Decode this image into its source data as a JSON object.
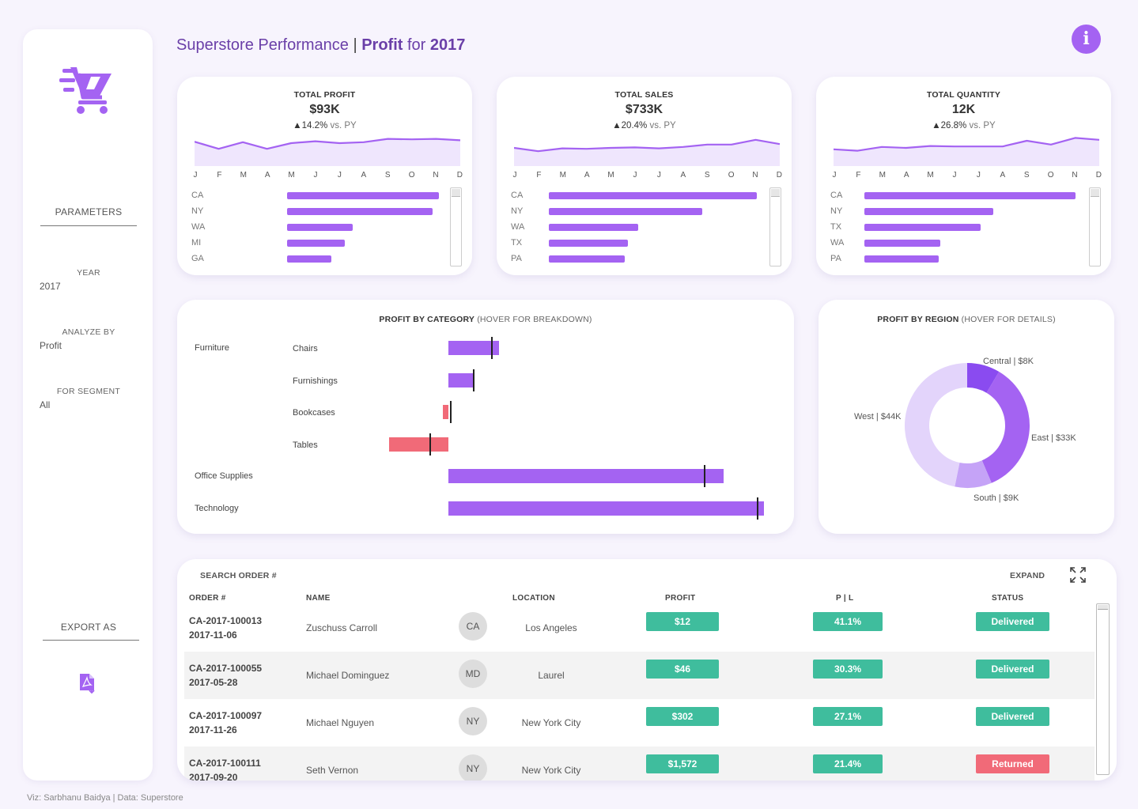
{
  "title": {
    "main": "Superstore Performance",
    "sep": " | ",
    "profit_word": "Profit",
    "for_word": " for ",
    "year": "2017"
  },
  "info_label": "i",
  "sidebar": {
    "parameters_label": "PARAMETERS",
    "year_label": "YEAR",
    "year_value": "2017",
    "analyze_label": "ANALYZE BY",
    "analyze_value": "Profit",
    "segment_label": "FOR SEGMENT",
    "segment_value": "All",
    "export_label": "EXPORT AS",
    "logo_icon": "shopping-cart-icon",
    "export_icon": "pdf-export-icon"
  },
  "months": [
    "J",
    "F",
    "M",
    "A",
    "M",
    "J",
    "J",
    "A",
    "S",
    "O",
    "N",
    "D"
  ],
  "kpis": [
    {
      "title": "TOTAL PROFIT",
      "value": "$93K",
      "delta": "▲14.2%",
      "vs": " vs. PY",
      "trend": [
        48,
        33,
        47,
        33,
        45,
        49,
        45,
        47,
        54,
        53,
        54,
        51
      ],
      "states": [
        {
          "name": "CA",
          "value": 92
        },
        {
          "name": "NY",
          "value": 88
        },
        {
          "name": "WA",
          "value": 40
        },
        {
          "name": "MI",
          "value": 35
        },
        {
          "name": "GA",
          "value": 27
        }
      ]
    },
    {
      "title": "TOTAL SALES",
      "value": "$733K",
      "delta": "▲20.4%",
      "vs": " vs. PY",
      "trend": [
        35,
        28,
        34,
        33,
        35,
        36,
        34,
        37,
        42,
        42,
        52,
        43
      ],
      "states": [
        {
          "name": "CA",
          "value": 126
        },
        {
          "name": "NY",
          "value": 93
        },
        {
          "name": "WA",
          "value": 54
        },
        {
          "name": "TX",
          "value": 48
        },
        {
          "name": "PA",
          "value": 46
        }
      ]
    },
    {
      "title": "TOTAL QUANTITY",
      "value": "12K",
      "delta": "▲26.8%",
      "vs": " vs. PY",
      "trend": [
        32,
        29,
        37,
        35,
        39,
        38,
        38,
        38,
        50,
        42,
        56,
        52
      ],
      "states": [
        {
          "name": "CA",
          "value": 4.1
        },
        {
          "name": "NY",
          "value": 2.5
        },
        {
          "name": "TX",
          "value": 2.25
        },
        {
          "name": "WA",
          "value": 1.47
        },
        {
          "name": "PA",
          "value": 1.44
        }
      ]
    }
  ],
  "category_chart": {
    "title_bold": "PROFIT BY CATEGORY",
    "title_hint": " (HOVER FOR BREAKDOWN)",
    "rows": [
      {
        "category": "Furniture",
        "sub": "Chairs",
        "value": 6.4,
        "py": 5.5,
        "color": "#a463f2"
      },
      {
        "category": "",
        "sub": "Furnishings",
        "value": 3.3,
        "py": 3.2,
        "color": "#a463f2"
      },
      {
        "category": "",
        "sub": "Bookcases",
        "value": -0.7,
        "py": 0.3,
        "color": "#f16a78"
      },
      {
        "category": "",
        "sub": "Tables",
        "value": -7.5,
        "py": -2.3,
        "color": "#f16a78"
      },
      {
        "category": "Office Supplies",
        "sub": "",
        "value": 34.8,
        "py": 32.4,
        "color": "#a463f2"
      },
      {
        "category": "Technology",
        "sub": "",
        "value": 39.9,
        "py": 39.1,
        "color": "#a463f2"
      }
    ]
  },
  "region_chart": {
    "title_bold": "PROFIT BY REGION",
    "title_hint": " (HOVER FOR DETAILS)",
    "slices": [
      {
        "label": "Central | $8K",
        "value": 8,
        "color": "#8a4bf0"
      },
      {
        "label": "East | $33K",
        "value": 33,
        "color": "#a463f2"
      },
      {
        "label": "South | $9K",
        "value": 9,
        "color": "#c5a3f7"
      },
      {
        "label": "West | $44K",
        "value": 44,
        "color": "#e3d4fb"
      }
    ]
  },
  "chart_data": [
    {
      "type": "line",
      "title": "TOTAL PROFIT",
      "x": [
        "J",
        "F",
        "M",
        "A",
        "M",
        "J",
        "J",
        "A",
        "S",
        "O",
        "N",
        "D"
      ],
      "y": [
        48,
        33,
        47,
        33,
        45,
        49,
        45,
        47,
        54,
        53,
        54,
        51
      ]
    },
    {
      "type": "line",
      "title": "TOTAL SALES",
      "x": [
        "J",
        "F",
        "M",
        "A",
        "M",
        "J",
        "J",
        "A",
        "S",
        "O",
        "N",
        "D"
      ],
      "y": [
        35,
        28,
        34,
        33,
        35,
        36,
        34,
        37,
        42,
        42,
        52,
        43
      ]
    },
    {
      "type": "line",
      "title": "TOTAL QUANTITY",
      "x": [
        "J",
        "F",
        "M",
        "A",
        "M",
        "J",
        "J",
        "A",
        "S",
        "O",
        "N",
        "D"
      ],
      "y": [
        32,
        29,
        37,
        35,
        39,
        38,
        38,
        38,
        50,
        42,
        56,
        52
      ]
    },
    {
      "type": "bar",
      "title": "PROFIT BY CATEGORY (HOVER FOR BREAKDOWN)",
      "categories": [
        "Chairs",
        "Furnishings",
        "Bookcases",
        "Tables",
        "Office Supplies",
        "Technology"
      ],
      "values": [
        6.4,
        3.3,
        -0.7,
        -7.5,
        34.8,
        39.9
      ]
    },
    {
      "type": "pie",
      "title": "PROFIT BY REGION (HOVER FOR DETAILS)",
      "categories": [
        "Central",
        "East",
        "South",
        "West"
      ],
      "values": [
        8,
        33,
        9,
        44
      ]
    }
  ],
  "orders": {
    "search_label": "SEARCH ORDER #",
    "expand_label": "EXPAND",
    "headers": {
      "order": "ORDER #",
      "name": "NAME",
      "location": "LOCATION",
      "profit": "PROFIT",
      "pl": "P | L",
      "status": "STATUS"
    },
    "rows": [
      {
        "id": "CA-2017-100013",
        "date": "2017-11-06",
        "name": "Zuschuss Carroll",
        "initials": "CA",
        "location": "Los Angeles",
        "profit": "$12",
        "pl": "41.1%",
        "status": "Delivered",
        "status_color": "green"
      },
      {
        "id": "CA-2017-100055",
        "date": "2017-05-28",
        "name": "Michael Dominguez",
        "initials": "MD",
        "location": "Laurel",
        "profit": "$46",
        "pl": "30.3%",
        "status": "Delivered",
        "status_color": "green"
      },
      {
        "id": "CA-2017-100097",
        "date": "2017-11-26",
        "name": "Michael Nguyen",
        "initials": "NY",
        "location": "New York City",
        "profit": "$302",
        "pl": "27.1%",
        "status": "Delivered",
        "status_color": "green"
      },
      {
        "id": "CA-2017-100111",
        "date": "2017-09-20",
        "name": "Seth Vernon",
        "initials": "NY",
        "location": "New York City",
        "profit": "$1,572",
        "pl": "21.4%",
        "status": "Returned",
        "status_color": "red"
      }
    ]
  },
  "footer": "Viz: Sarbhanu Baidya | Data: Superstore"
}
